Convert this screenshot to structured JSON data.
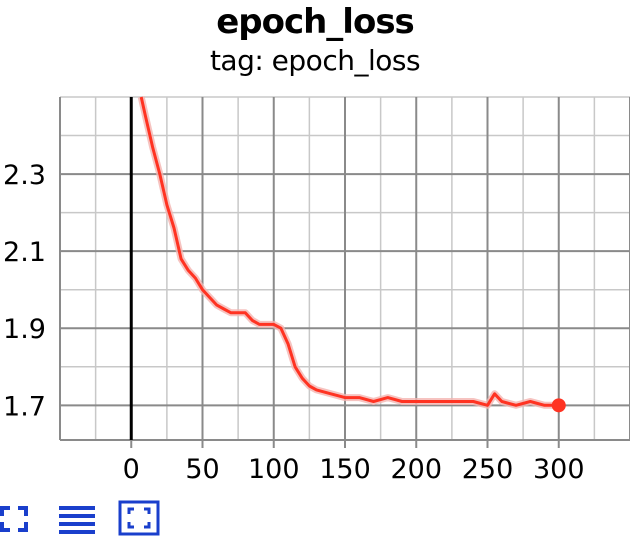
{
  "chart_data": {
    "type": "line",
    "title": "epoch_loss",
    "subtitle": "tag: epoch_loss",
    "xlabel": "",
    "ylabel": "",
    "xlim": [
      -50,
      350
    ],
    "ylim": [
      1.61,
      2.5
    ],
    "x_ticks": [
      0,
      50,
      100,
      150,
      200,
      250,
      300
    ],
    "y_ticks": [
      1.7,
      1.9,
      2.1,
      2.3
    ],
    "grid": true,
    "line_color": "#ff3322",
    "smoothed_shadow_color": "#f4b4b0",
    "series": [
      {
        "name": "",
        "x": [
          7,
          10,
          15,
          20,
          25,
          30,
          35,
          40,
          45,
          50,
          55,
          60,
          65,
          70,
          75,
          80,
          85,
          90,
          95,
          100,
          105,
          110,
          115,
          120,
          125,
          130,
          140,
          150,
          160,
          170,
          180,
          190,
          200,
          210,
          220,
          230,
          240,
          250,
          255,
          260,
          270,
          280,
          290,
          300
        ],
        "y": [
          2.5,
          2.45,
          2.37,
          2.3,
          2.22,
          2.16,
          2.08,
          2.05,
          2.03,
          2.0,
          1.98,
          1.96,
          1.95,
          1.94,
          1.94,
          1.94,
          1.92,
          1.91,
          1.91,
          1.91,
          1.9,
          1.86,
          1.8,
          1.77,
          1.75,
          1.74,
          1.73,
          1.72,
          1.72,
          1.71,
          1.72,
          1.71,
          1.71,
          1.71,
          1.71,
          1.71,
          1.71,
          1.7,
          1.73,
          1.71,
          1.7,
          1.71,
          1.7,
          1.7
        ]
      }
    ]
  },
  "toolbar": {
    "items": [
      {
        "icon": "fit-to-data-icon"
      },
      {
        "icon": "data-table-icon"
      },
      {
        "icon": "toggle-y-axis-icon"
      }
    ],
    "icon_color": "#1a3fcc"
  }
}
